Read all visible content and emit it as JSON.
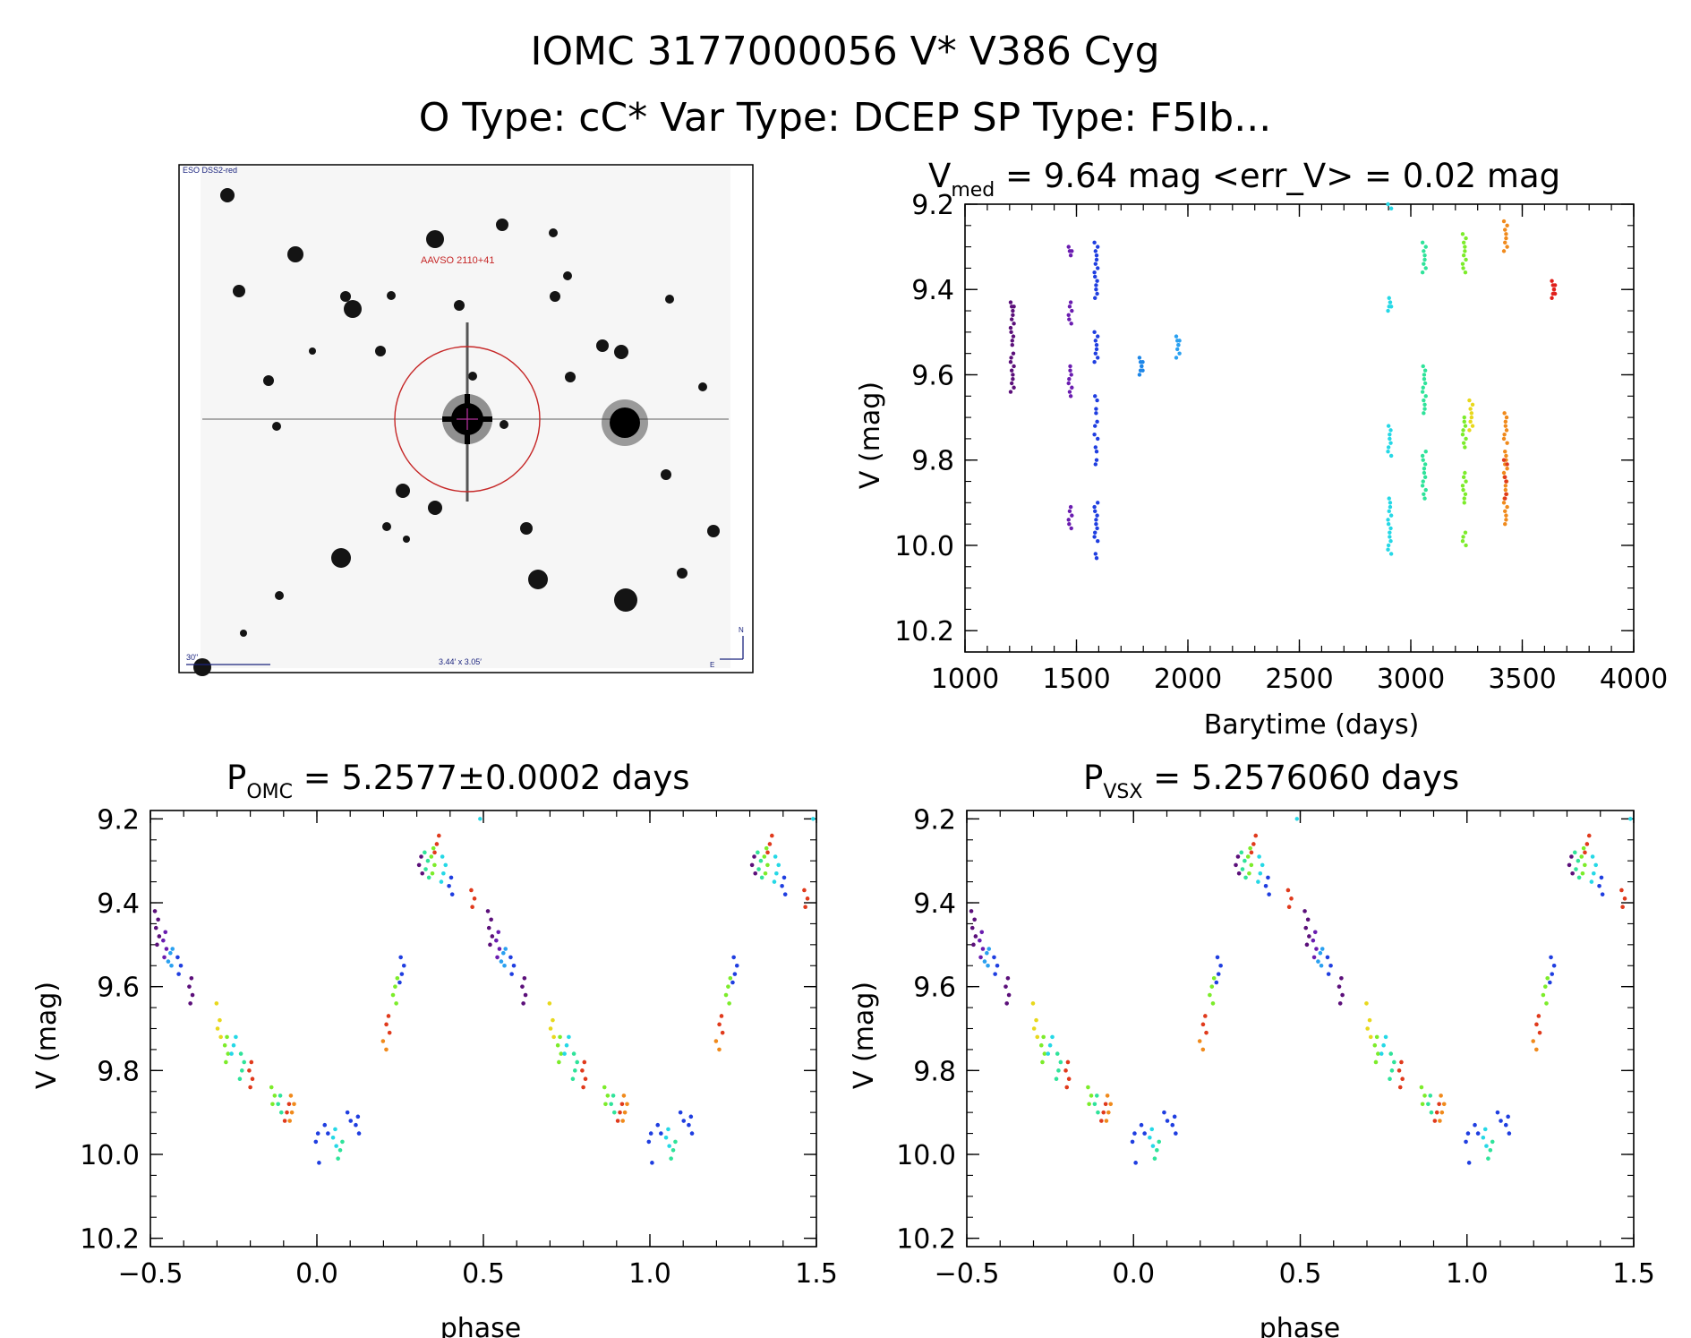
{
  "header": {
    "title_line1": "IOMC 3177000056   V* V386 Cyg",
    "title_line2": "O Type: cC*  Var Type: DCEP  SP Type: F5Ib..."
  },
  "finder": {
    "survey_label": "ESO DSS2-red",
    "target_label": "AAVSO 2110+41",
    "scale_label": "30\"",
    "fov_label": "3.44′ x 3.05′",
    "north_label": "N",
    "east_label": "E",
    "circle_color": "#c62828",
    "crosshair_color": "#b0309a"
  },
  "panels": {
    "lightcurve": {
      "title_main": "V",
      "title_sub": "med",
      "title_rest": " = 9.64 mag <err_V> = 0.02 mag",
      "xlabel": "Barytime (days)",
      "ylabel": "V (mag)"
    },
    "phase_omc": {
      "title_main": "P",
      "title_sub": "OMC",
      "title_rest": " = 5.2577±0.0002 days",
      "xlabel": "phase",
      "ylabel": "V (mag)"
    },
    "phase_vsx": {
      "title_main": "P",
      "title_sub": "VSX",
      "title_rest": " = 5.2576060 days",
      "xlabel": "phase",
      "ylabel": "V (mag)"
    }
  },
  "chart_data": [
    {
      "type": "scatter",
      "title": "V_med = 9.64 mag <err_V> = 0.02 mag",
      "xlabel": "Barytime (days)",
      "ylabel": "V (mag)",
      "xlim": [
        1000,
        4000
      ],
      "ylim": [
        10.25,
        9.2
      ],
      "y_inverted": true,
      "xticks": [
        1000,
        1500,
        2000,
        2500,
        3000,
        3500,
        4000
      ],
      "yticks": [
        9.2,
        9.4,
        9.6,
        9.8,
        10.0,
        10.2
      ],
      "ytick_labels": [
        "9.2",
        "9.4",
        "9.6",
        "9.8",
        "10.0",
        "10.2"
      ],
      "grid": false,
      "series": [
        {
          "color": "#5b0f7a",
          "x": 1212,
          "y": [
            9.43,
            9.44,
            9.46,
            9.48,
            9.5,
            9.52,
            9.55,
            9.57,
            9.59,
            9.61,
            9.63
          ]
        },
        {
          "color": "#6a1cb0",
          "x": 1472,
          "y": [
            9.3,
            9.31,
            9.43,
            9.45,
            9.47,
            9.58,
            9.6,
            9.62,
            9.64,
            9.91,
            9.93,
            9.95
          ]
        },
        {
          "color": "#1f3ee0",
          "x": 1588,
          "y": [
            9.29,
            9.31,
            9.33,
            9.35,
            9.37,
            9.39,
            9.41,
            9.5,
            9.52,
            9.54,
            9.56,
            9.65,
            9.68,
            9.71,
            9.74,
            9.77,
            9.8,
            9.9,
            9.92,
            9.94,
            9.96,
            9.98,
            10.02
          ]
        },
        {
          "color": "#1c86e8",
          "x": 1790,
          "y": [
            9.56,
            9.57,
            9.58,
            9.59
          ]
        },
        {
          "color": "#2aa0f0",
          "x": 1955,
          "y": [
            9.51,
            9.52,
            9.53,
            9.55
          ]
        },
        {
          "color": "#25d8e6",
          "x": 2905,
          "y": [
            9.2,
            9.42,
            9.43,
            9.44,
            9.72,
            9.74,
            9.76,
            9.78,
            9.89,
            9.91,
            9.93,
            9.95,
            9.97,
            9.99,
            10.01
          ]
        },
        {
          "color": "#2fe39a",
          "x": 3060,
          "y": [
            9.29,
            9.31,
            9.33,
            9.35,
            9.58,
            9.6,
            9.62,
            9.64,
            9.66,
            9.68,
            9.78,
            9.8,
            9.82,
            9.84,
            9.86,
            9.88
          ]
        },
        {
          "color": "#7cec2a",
          "x": 3240,
          "y": [
            9.27,
            9.29,
            9.31,
            9.33,
            9.35,
            9.7,
            9.72,
            9.74,
            9.76,
            9.83,
            9.85,
            9.87,
            9.89,
            9.97,
            9.99
          ]
        },
        {
          "color": "#e8d81c",
          "x": 3270,
          "y": [
            9.66,
            9.68,
            9.7,
            9.72
          ]
        },
        {
          "color": "#f08a1c",
          "x": 3425,
          "y": [
            9.24,
            9.26,
            9.28,
            9.3,
            9.69,
            9.71,
            9.73,
            9.75,
            9.78,
            9.8,
            9.82,
            9.84,
            9.86,
            9.88,
            9.9,
            9.92,
            9.94
          ]
        },
        {
          "color": "#e03a1c",
          "x": 3425,
          "y": [
            9.8,
            9.84,
            9.88
          ]
        },
        {
          "color": "#e0201c",
          "x": 3640,
          "y": [
            9.38,
            9.39,
            9.4,
            9.41
          ]
        }
      ]
    },
    {
      "type": "scatter",
      "title": "P_OMC = 5.2577±0.0002 days",
      "xlabel": "phase",
      "ylabel": "V (mag)",
      "xlim": [
        -0.5,
        1.5
      ],
      "ylim": [
        10.22,
        9.18
      ],
      "y_inverted": true,
      "xticks": [
        -0.5,
        0.0,
        0.5,
        1.0,
        1.5
      ],
      "xtick_labels": [
        "−0.5",
        "0.0",
        "0.5",
        "1.0",
        "1.5"
      ],
      "yticks": [
        9.2,
        9.4,
        9.6,
        9.8,
        10.0,
        10.2
      ],
      "ytick_labels": [
        "9.2",
        "9.4",
        "9.6",
        "9.8",
        "10.0",
        "10.2"
      ],
      "grid": false,
      "phase_clusters": [
        {
          "phase": -0.48,
          "y": [
            9.42,
            9.44,
            9.46,
            9.48,
            9.5
          ],
          "color": "#5b0f7a"
        },
        {
          "phase": -0.455,
          "y": [
            9.47,
            9.49,
            9.51,
            9.53
          ],
          "color": "#6a1cb0"
        },
        {
          "phase": -0.44,
          "y": [
            9.51,
            9.52,
            9.54,
            9.55
          ],
          "color": "#2aa0f0"
        },
        {
          "phase": -0.415,
          "y": [
            9.53,
            9.55,
            9.57
          ],
          "color": "#1f3ee0"
        },
        {
          "phase": -0.38,
          "y": [
            9.58,
            9.6,
            9.62,
            9.64
          ],
          "color": "#5b0f7a"
        },
        {
          "phase": -0.295,
          "y": [
            9.64,
            9.68,
            9.7,
            9.72
          ],
          "color": "#e8d81c"
        },
        {
          "phase": -0.27,
          "y": [
            9.72,
            9.74,
            9.76,
            9.78
          ],
          "color": "#7cec2a"
        },
        {
          "phase": -0.25,
          "y": [
            9.72,
            9.74,
            9.76
          ],
          "color": "#25d8e6"
        },
        {
          "phase": -0.225,
          "y": [
            9.76,
            9.78,
            9.8,
            9.82
          ],
          "color": "#2fe39a"
        },
        {
          "phase": -0.2,
          "y": [
            9.78,
            9.8,
            9.82,
            9.84
          ],
          "color": "#e03a1c"
        },
        {
          "phase": -0.13,
          "y": [
            9.84,
            9.86,
            9.88
          ],
          "color": "#7cec2a"
        },
        {
          "phase": -0.11,
          "y": [
            9.86,
            9.88,
            9.9
          ],
          "color": "#2fe39a"
        },
        {
          "phase": -0.09,
          "y": [
            9.88,
            9.9,
            9.92
          ],
          "color": "#e03a1c"
        },
        {
          "phase": -0.075,
          "y": [
            9.86,
            9.88,
            9.9,
            9.92
          ],
          "color": "#f08a1c"
        },
        {
          "phase": 0.0,
          "y": [
            9.95,
            9.97,
            10.02
          ],
          "color": "#1f3ee0"
        },
        {
          "phase": 0.03,
          "y": [
            9.93,
            9.95
          ],
          "color": "#1f3ee0"
        },
        {
          "phase": 0.055,
          "y": [
            9.94,
            9.96,
            9.98
          ],
          "color": "#25d8e6"
        },
        {
          "phase": 0.07,
          "y": [
            9.97,
            9.99,
            10.01
          ],
          "color": "#2fe39a"
        },
        {
          "phase": 0.095,
          "y": [
            9.9,
            9.92
          ],
          "color": "#1f3ee0"
        },
        {
          "phase": 0.12,
          "y": [
            9.91,
            9.93,
            9.95
          ],
          "color": "#1f3ee0"
        },
        {
          "phase": 0.205,
          "y": [
            9.73,
            9.75
          ],
          "color": "#f08a1c"
        },
        {
          "phase": 0.215,
          "y": [
            9.67,
            9.69,
            9.71
          ],
          "color": "#e03a1c"
        },
        {
          "phase": 0.235,
          "y": [
            9.58,
            9.6,
            9.62,
            9.64
          ],
          "color": "#7cec2a"
        },
        {
          "phase": 0.255,
          "y": [
            9.53,
            9.55,
            9.57,
            9.59
          ],
          "color": "#1f3ee0"
        },
        {
          "phase": 0.31,
          "y": [
            9.29,
            9.31,
            9.33
          ],
          "color": "#5b0f7a"
        },
        {
          "phase": 0.33,
          "y": [
            9.28,
            9.3,
            9.32,
            9.34
          ],
          "color": "#2fe39a"
        },
        {
          "phase": 0.35,
          "y": [
            9.27,
            9.29,
            9.31,
            9.33
          ],
          "color": "#7cec2a"
        },
        {
          "phase": 0.36,
          "y": [
            9.24,
            9.26,
            9.28
          ],
          "color": "#e03a1c"
        },
        {
          "phase": 0.38,
          "y": [
            9.29,
            9.31,
            9.33,
            9.35
          ],
          "color": "#25d8e6"
        },
        {
          "phase": 0.4,
          "y": [
            9.34,
            9.36,
            9.38
          ],
          "color": "#1f3ee0"
        },
        {
          "phase": 0.47,
          "y": [
            9.37,
            9.39,
            9.41
          ],
          "color": "#e03a1c"
        }
      ]
    },
    {
      "type": "scatter",
      "title": "P_VSX = 5.2576060 days",
      "xlabel": "phase",
      "ylabel": "V (mag)",
      "xlim": [
        -0.5,
        1.5
      ],
      "ylim": [
        10.22,
        9.18
      ],
      "y_inverted": true,
      "xticks": [
        -0.5,
        0.0,
        0.5,
        1.0,
        1.5
      ],
      "xtick_labels": [
        "−0.5",
        "0.0",
        "0.5",
        "1.0",
        "1.5"
      ],
      "yticks": [
        9.2,
        9.4,
        9.6,
        9.8,
        10.0,
        10.2
      ],
      "ytick_labels": [
        "9.2",
        "9.4",
        "9.6",
        "9.8",
        "10.0",
        "10.2"
      ],
      "grid": false,
      "same_clusters_as": "P_OMC"
    }
  ]
}
